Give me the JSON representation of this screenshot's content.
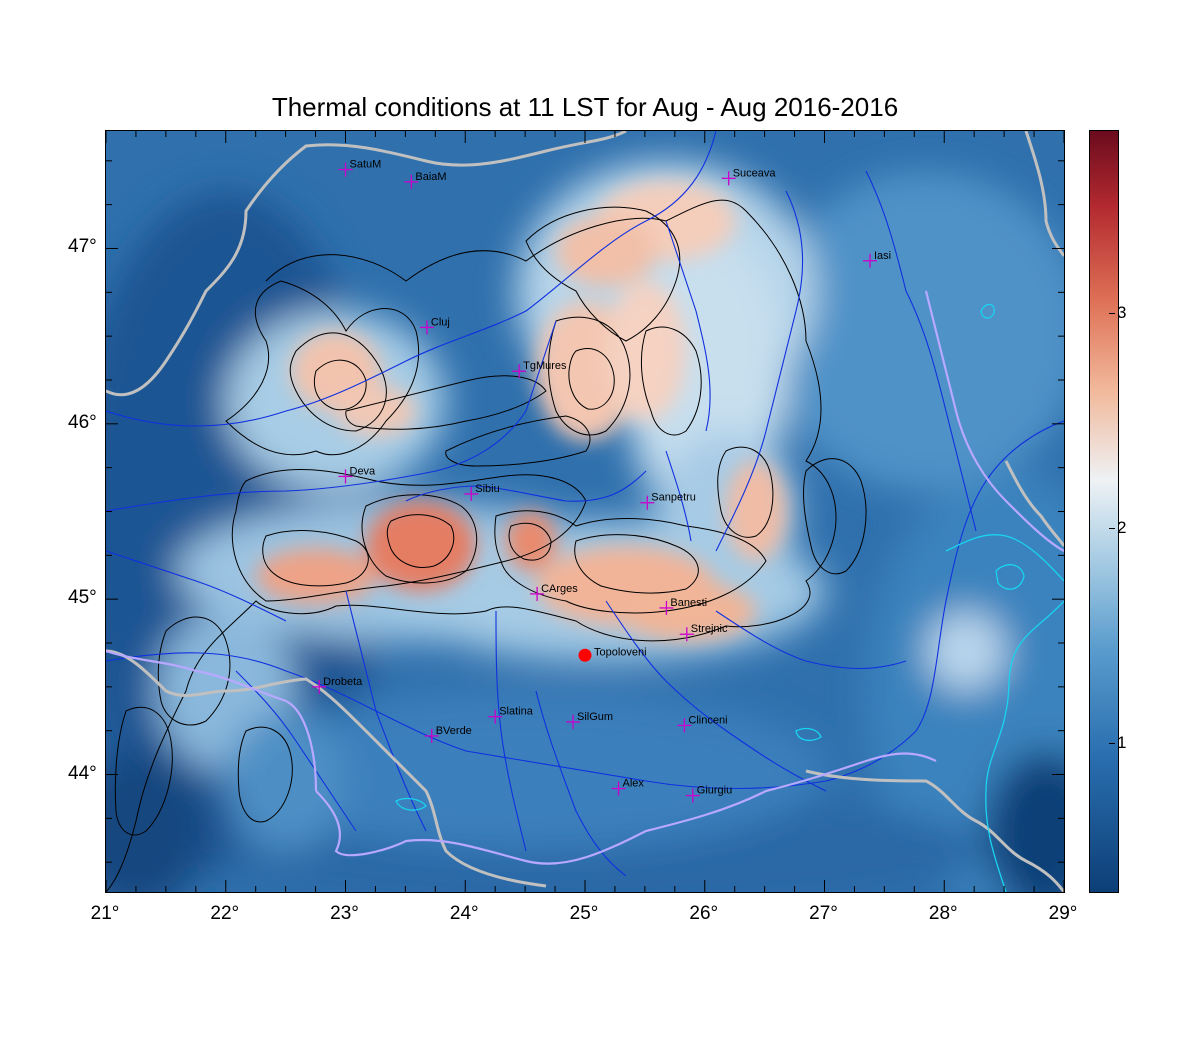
{
  "title": "Thermal conditions at 11 LST for Aug - Aug  2016-2016",
  "x_axis": {
    "ticks": [
      "21°",
      "22°",
      "23°",
      "24°",
      "25°",
      "26°",
      "27°",
      "28°",
      "29°"
    ],
    "values": [
      21,
      22,
      23,
      24,
      25,
      26,
      27,
      28,
      29
    ]
  },
  "y_axis": {
    "ticks": [
      "44°",
      "45°",
      "46°",
      "47°"
    ],
    "values": [
      44,
      45,
      46,
      47
    ]
  },
  "extent": {
    "lon": [
      21,
      29
    ],
    "lat": [
      43.33,
      47.67
    ]
  },
  "colorbar": {
    "ticks": [
      "1",
      "2",
      "3"
    ],
    "values": [
      1,
      2,
      3
    ],
    "range": [
      0.3,
      3.85
    ],
    "colors": {
      "low": "#0d3f77",
      "mid": "#eef2f5",
      "high": "#6b0b1d"
    }
  },
  "marker": {
    "name": "Topoloveni",
    "lon": 25.0,
    "lat": 44.68,
    "color": "#ff0000"
  },
  "stations": [
    {
      "name": "SatuM",
      "lon": 23.0,
      "lat": 47.45
    },
    {
      "name": "BaiaM",
      "lon": 23.55,
      "lat": 47.38
    },
    {
      "name": "Suceava",
      "lon": 26.2,
      "lat": 47.4
    },
    {
      "name": "Iasi",
      "lon": 27.38,
      "lat": 46.93
    },
    {
      "name": "Cluj",
      "lon": 23.68,
      "lat": 46.55
    },
    {
      "name": "TgMures",
      "lon": 24.45,
      "lat": 46.3
    },
    {
      "name": "Deva",
      "lon": 23.0,
      "lat": 45.7
    },
    {
      "name": "Sibiu",
      "lon": 24.05,
      "lat": 45.6
    },
    {
      "name": "Sanpetru",
      "lon": 25.52,
      "lat": 45.55
    },
    {
      "name": "CArges",
      "lon": 24.6,
      "lat": 45.03
    },
    {
      "name": "Banesti",
      "lon": 25.68,
      "lat": 44.95
    },
    {
      "name": "Strejnic",
      "lon": 25.85,
      "lat": 44.8
    },
    {
      "name": "Drobeta",
      "lon": 22.78,
      "lat": 44.5
    },
    {
      "name": "Slatina",
      "lon": 24.25,
      "lat": 44.33
    },
    {
      "name": "SilGum",
      "lon": 24.9,
      "lat": 44.3
    },
    {
      "name": "Clinceni",
      "lon": 25.83,
      "lat": 44.28
    },
    {
      "name": "BVerde",
      "lon": 23.72,
      "lat": 44.22
    },
    {
      "name": "Alex",
      "lon": 25.28,
      "lat": 43.92
    },
    {
      "name": "Giurgiu",
      "lon": 25.9,
      "lat": 43.88
    }
  ],
  "colors": {
    "station_marker": "#cc00cc",
    "rivers": "#1030e0",
    "borders": "#c0c0c0",
    "coast": "#19d4f0",
    "romania_border": "#b8a8ff",
    "contours": "#000000"
  }
}
